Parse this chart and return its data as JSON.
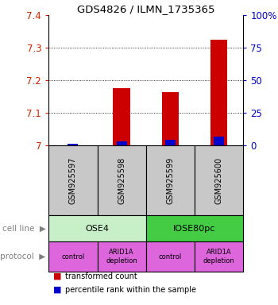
{
  "title": "GDS4826 / ILMN_1735365",
  "samples": [
    "GSM925597",
    "GSM925598",
    "GSM925599",
    "GSM925600"
  ],
  "red_values": [
    7.0,
    7.175,
    7.165,
    7.325
  ],
  "blue_values": [
    7.003,
    7.013,
    7.018,
    7.028
  ],
  "ylim": [
    7.0,
    7.4
  ],
  "yticks": [
    7.0,
    7.1,
    7.2,
    7.3,
    7.4
  ],
  "ytick_labels": [
    "7",
    "7.1",
    "7.2",
    "7.3",
    "7.4"
  ],
  "right_yticks": [
    0,
    25,
    50,
    75,
    100
  ],
  "right_ytick_labels": [
    "0",
    "25",
    "50",
    "75",
    "100%"
  ],
  "cell_line_labels": [
    "OSE4",
    "IOSE80pc"
  ],
  "cell_line_colors": [
    "#c8f0c8",
    "#44cc44"
  ],
  "cell_line_spans": [
    [
      0,
      2
    ],
    [
      2,
      4
    ]
  ],
  "protocol_labels": [
    "control",
    "ARID1A\ndepletion",
    "control",
    "ARID1A\ndepletion"
  ],
  "protocol_color": "#dd66dd",
  "bar_width": 0.35,
  "red_color": "#cc0000",
  "blue_color": "#0000cc",
  "base_value": 7.0,
  "left_tick_color": "#cc2200",
  "right_tick_color": "#0000cc",
  "grid_color": "#333333",
  "sample_box_color": "#c8c8c8",
  "legend_red": "transformed count",
  "legend_blue": "percentile rank within the sample",
  "cell_line_label_left": "cell line",
  "protocol_label_left": "protocol"
}
